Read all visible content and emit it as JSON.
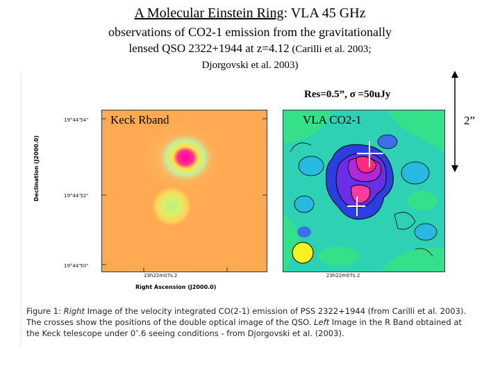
{
  "title": {
    "main": "A Molecular Einstein Ring",
    "suffix": ": VLA 45 GHz",
    "line2": "observations of CO2-1 emission from the gravitationally",
    "line3_a": "lensed QSO 2322+1944 at z=4.12",
    "line3_b": " (Carilli et al. 2003;",
    "line4": "Djorgovski et al. 2003)"
  },
  "figure": {
    "resolution_label": "Res=0.5”, σ =50uJy",
    "left_panel_label": "Keck Rband",
    "right_panel_label": "VLA CO2-1",
    "scale_label": "2”",
    "y_ticks": [
      "19°44'54\"",
      "19°44'52\"",
      "19°44'50\""
    ],
    "x_ticks": [
      "23h22m07s.2",
      "23h22m07s.2"
    ],
    "y_axis_label": "Declination (J2000.0)",
    "x_axis_label": "Right Ascension (J2000.0)"
  },
  "caption": {
    "fig_label": "Figure 1:",
    "right_word": "Right",
    "part1": " Image of the velocity integrated CO(2-1) emission of PSS 2322+1944 (from Carilli et al. 2003). The crosses show the positions of the double optical image of the QSO. ",
    "left_words": "Left",
    "part2": " Image in the R Band obtained at the Keck telescope under 0″.6 seeing conditions - from Djorgovski et al. (2003)."
  }
}
